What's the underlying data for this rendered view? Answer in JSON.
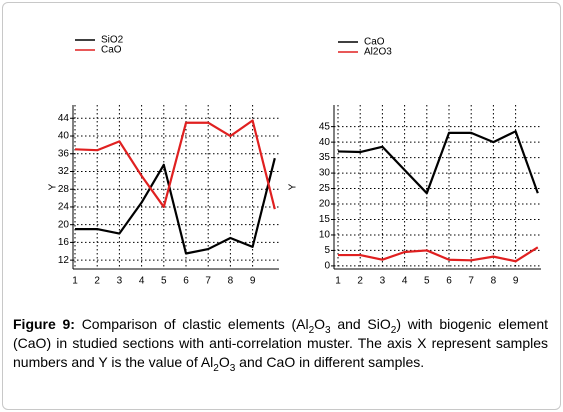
{
  "chart_data": [
    {
      "type": "line",
      "y_label": "Y",
      "categories": [
        "1",
        "2",
        "3",
        "4",
        "5",
        "6",
        "7",
        "8",
        "9",
        null
      ],
      "series": [
        {
          "name": "SiO2",
          "color": "#000000",
          "values": [
            19,
            19,
            18,
            25,
            33.5,
            13.5,
            14.5,
            17,
            15,
            35
          ]
        },
        {
          "name": "CaO",
          "color": "#e02020",
          "values": [
            37,
            36.8,
            38.8,
            31,
            24,
            43,
            43,
            40,
            43.5,
            23.5
          ]
        }
      ],
      "ylim": [
        10,
        47
      ],
      "yticks": [
        12,
        16,
        20,
        24,
        28,
        32,
        36,
        40,
        44
      ],
      "grid": true
    },
    {
      "type": "line",
      "y_label": "Y",
      "categories": [
        "1",
        "2",
        "3",
        "4",
        "5",
        "6",
        "7",
        "8",
        "9",
        null
      ],
      "series": [
        {
          "name": "CaO",
          "color": "#000000",
          "values": [
            37,
            36.8,
            38.5,
            31,
            23.5,
            43,
            43,
            40,
            43.5,
            23.5
          ]
        },
        {
          "name": "Al2O3",
          "color": "#e02020",
          "values": [
            3.5,
            3.5,
            2,
            4.5,
            5,
            2,
            1.8,
            3,
            1.5,
            6
          ]
        }
      ],
      "ylim": [
        -1,
        52
      ],
      "yticks": [
        0,
        5,
        10,
        15,
        20,
        25,
        30,
        35,
        40,
        45
      ],
      "grid": true
    }
  ],
  "caption": [
    {
      "text": "Figure 9:",
      "style": "bold"
    },
    {
      "text": " Comparison of clastic elements (Al",
      "style": "normal"
    },
    {
      "text": "2",
      "style": "sub"
    },
    {
      "text": "O",
      "style": "normal"
    },
    {
      "text": "3",
      "style": "sub"
    },
    {
      "text": " and SiO",
      "style": "normal"
    },
    {
      "text": "2",
      "style": "sub"
    },
    {
      "text": ") with biogenic element (CaO) in studied sections with anti-correlation muster. The axis X represent samples numbers and Y is the value of Al",
      "style": "normal"
    },
    {
      "text": "2",
      "style": "sub"
    },
    {
      "text": "O",
      "style": "normal"
    },
    {
      "text": "3",
      "style": "sub"
    },
    {
      "text": " and CaO in different samples.",
      "style": "normal"
    }
  ]
}
